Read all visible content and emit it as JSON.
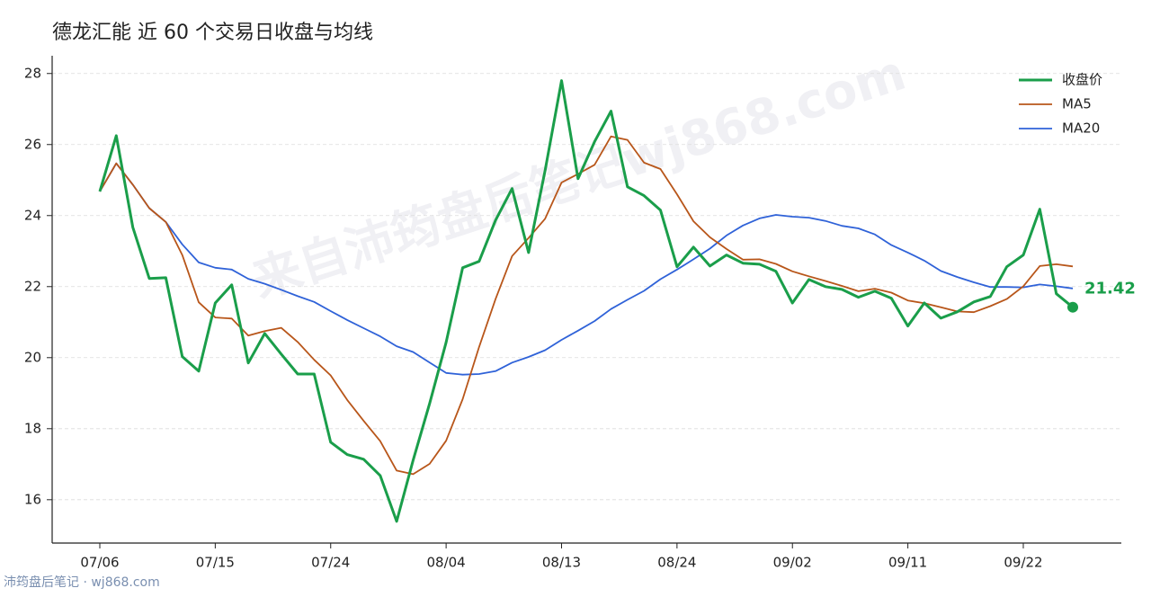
{
  "chart_data": {
    "type": "line",
    "title": "德龙汇能 近 60 个交易日收盘与均线",
    "categories": [
      "07/06",
      null,
      null,
      null,
      null,
      null,
      null,
      "07/15",
      null,
      null,
      null,
      null,
      null,
      null,
      "07/24",
      null,
      null,
      null,
      null,
      null,
      null,
      "08/04",
      null,
      null,
      null,
      null,
      null,
      null,
      "08/13",
      null,
      null,
      null,
      null,
      null,
      null,
      "08/24",
      null,
      null,
      null,
      null,
      null,
      null,
      "09/02",
      null,
      null,
      null,
      null,
      null,
      null,
      "09/11",
      null,
      null,
      null,
      null,
      null,
      null,
      "09/22",
      null,
      null,
      null
    ],
    "series": [
      {
        "name": "收盘价",
        "color": "#1a9e4a",
        "width": 3,
        "values": [
          24.68,
          26.25,
          23.67,
          22.23,
          22.25,
          20.03,
          19.62,
          21.54,
          22.05,
          19.85,
          20.68,
          20.1,
          19.54,
          19.54,
          17.62,
          17.27,
          17.14,
          16.68,
          15.39,
          17.11,
          18.71,
          20.43,
          22.53,
          22.71,
          23.87,
          24.76,
          22.96,
          25.27,
          27.8,
          25.04,
          26.08,
          26.94,
          24.81,
          24.56,
          24.15,
          22.56,
          23.11,
          22.58,
          22.89,
          22.66,
          22.63,
          22.43,
          21.54,
          22.2,
          22.0,
          21.92,
          21.7,
          21.87,
          21.67,
          20.89,
          21.54,
          21.11,
          21.29,
          21.57,
          21.72,
          22.56,
          22.89,
          24.18,
          21.8,
          21.42
        ]
      },
      {
        "name": "MA5",
        "color": "#b8561a",
        "width": 1.8,
        "values": [
          24.68,
          25.47,
          24.87,
          24.21,
          23.82,
          22.89,
          21.56,
          21.13,
          21.1,
          20.62,
          20.75,
          20.84,
          20.44,
          19.94,
          19.5,
          18.81,
          18.22,
          17.65,
          16.82,
          16.72,
          17.01,
          17.66,
          18.83,
          20.3,
          21.65,
          22.86,
          23.37,
          23.91,
          24.93,
          25.17,
          25.43,
          26.23,
          26.13,
          25.49,
          25.31,
          24.6,
          23.84,
          23.39,
          23.06,
          22.76,
          22.77,
          22.64,
          22.43,
          22.29,
          22.16,
          22.02,
          21.87,
          21.94,
          21.83,
          21.61,
          21.53,
          21.42,
          21.3,
          21.28,
          21.45,
          21.65,
          22.01,
          22.58,
          22.63,
          22.57
        ]
      },
      {
        "name": "MA20",
        "color": "#2f62d8",
        "width": 1.8,
        "values": [
          24.68,
          25.47,
          24.87,
          24.21,
          23.82,
          23.19,
          22.68,
          22.53,
          22.48,
          22.22,
          22.08,
          21.91,
          21.73,
          21.57,
          21.31,
          21.06,
          20.83,
          20.6,
          20.32,
          20.16,
          19.86,
          19.57,
          19.52,
          19.54,
          19.62,
          19.86,
          20.02,
          20.21,
          20.5,
          20.76,
          21.03,
          21.37,
          21.63,
          21.88,
          22.21,
          22.48,
          22.77,
          23.07,
          23.44,
          23.72,
          23.92,
          24.02,
          23.97,
          23.94,
          23.85,
          23.71,
          23.64,
          23.47,
          23.17,
          22.96,
          22.73,
          22.44,
          22.27,
          22.12,
          21.99,
          21.99,
          21.98,
          22.06,
          22.01,
          21.95
        ]
      }
    ],
    "ylim": [
      14.78,
      28.5
    ],
    "yticks": [
      16,
      18,
      20,
      22,
      24,
      26,
      28
    ],
    "grid": true,
    "legend": "upper right",
    "watermark": "来自沛筠盘后笔记wj868.com"
  },
  "footer": "沛筠盘后笔记 · wj868.com"
}
